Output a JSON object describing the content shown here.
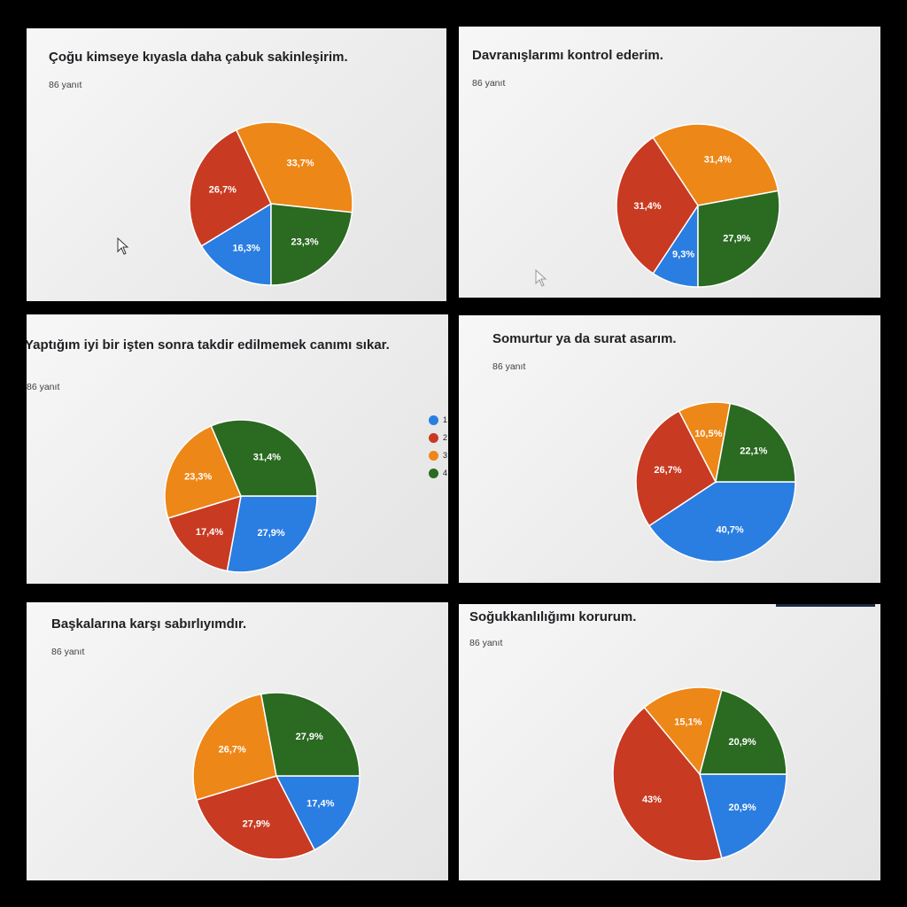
{
  "colors": {
    "1": "#2a7de1",
    "2": "#c83a22",
    "3": "#ed8717",
    "4": "#2a6a21"
  },
  "legend": {
    "labels": [
      "1",
      "2",
      "3",
      "4"
    ]
  },
  "chart_data": [
    {
      "type": "pie",
      "title": "Çoğu kimseye kıyasla daha çabuk sakinleşirim.",
      "responses": "86 yanıt",
      "categories": [
        "1",
        "2",
        "3",
        "4"
      ],
      "values": [
        16.3,
        26.7,
        33.7,
        23.3
      ],
      "labels": [
        "16,3%",
        "26,7%",
        "33,7%",
        "23,3%"
      ]
    },
    {
      "type": "pie",
      "title": "Davranışlarımı kontrol ederim.",
      "responses": "86 yanıt",
      "categories": [
        "1",
        "2",
        "3",
        "4"
      ],
      "values": [
        9.3,
        31.4,
        31.4,
        27.9
      ],
      "labels": [
        "9,3%",
        "31,4%",
        "31,4%",
        "27,9%"
      ]
    },
    {
      "type": "pie",
      "title": "Yaptığım iyi bir işten sonra takdir edilmemek canımı sıkar.",
      "responses": "86 yanıt",
      "categories": [
        "1",
        "2",
        "3",
        "4"
      ],
      "values": [
        27.9,
        17.4,
        23.3,
        31.4
      ],
      "labels": [
        "27,9%",
        "17,4%",
        "23,3%",
        "31,4%"
      ]
    },
    {
      "type": "pie",
      "title": "Somurtur ya da surat asarım.",
      "responses": "86 yanıt",
      "categories": [
        "1",
        "2",
        "3",
        "4"
      ],
      "values": [
        40.7,
        26.7,
        10.5,
        22.1
      ],
      "labels": [
        "40,7%",
        "26,7%",
        "10,5%",
        "22,1%"
      ]
    },
    {
      "type": "pie",
      "title": "Başkalarına karşı sabırlıyımdır.",
      "responses": "86 yanıt",
      "categories": [
        "1",
        "2",
        "3",
        "4"
      ],
      "values": [
        17.4,
        27.9,
        26.7,
        27.9
      ],
      "labels": [
        "17,4%",
        "27,9%",
        "26,7%",
        "27,9%"
      ]
    },
    {
      "type": "pie",
      "title": "Soğukkanlılığımı korurum.",
      "responses": "86 yanıt",
      "categories": [
        "1",
        "2",
        "3",
        "4"
      ],
      "values": [
        20.9,
        43,
        15.1,
        20.9
      ],
      "labels": [
        "20,9%",
        "43%",
        "15,1%",
        "20,9%"
      ]
    }
  ]
}
